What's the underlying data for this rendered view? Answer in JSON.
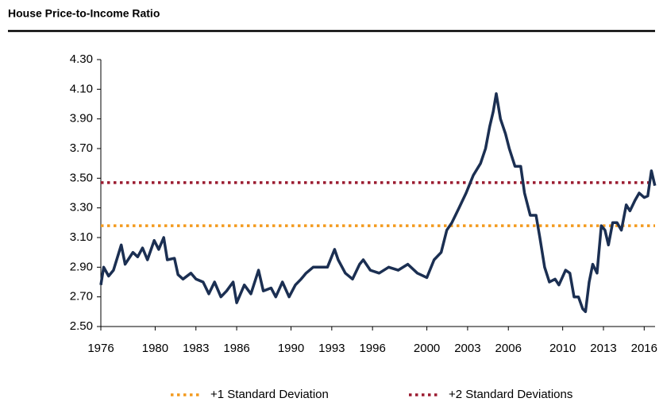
{
  "chart_data": {
    "type": "line",
    "title": "House Price-to-Income Ratio",
    "x": [
      1976.0,
      1976.21,
      1976.57,
      1976.93,
      1977.5,
      1977.79,
      1978.36,
      1978.71,
      1979.07,
      1979.43,
      1979.93,
      1980.26,
      1980.63,
      1980.89,
      1981.42,
      1981.68,
      1982.05,
      1982.63,
      1983.0,
      1983.53,
      1983.95,
      1984.37,
      1984.84,
      1985.26,
      1985.74,
      1986.0,
      1986.56,
      1987.05,
      1987.61,
      1987.96,
      1988.53,
      1988.88,
      1989.37,
      1989.86,
      1990.32,
      1990.74,
      1991.11,
      1991.63,
      1992.16,
      1992.68,
      1993.21,
      1993.47,
      1994.0,
      1994.53,
      1995.05,
      1995.32,
      1995.84,
      1996.49,
      1997.19,
      1997.89,
      1998.6,
      1999.3,
      2000.0,
      2000.53,
      2001.05,
      2001.47,
      2001.84,
      2002.37,
      2002.89,
      2003.42,
      2003.95,
      2004.32,
      2004.63,
      2004.89,
      2005.11,
      2005.42,
      2005.79,
      2006.07,
      2006.49,
      2006.91,
      2007.19,
      2007.61,
      2008.04,
      2008.32,
      2008.67,
      2009.02,
      2009.44,
      2009.72,
      2010.21,
      2010.53,
      2010.84,
      2011.16,
      2011.47,
      2011.68,
      2011.95,
      2012.21,
      2012.53,
      2012.84,
      2013.11,
      2013.37,
      2013.68,
      2014.0,
      2014.32,
      2014.68,
      2014.95,
      2015.32,
      2015.63,
      2016.0,
      2016.26,
      2016.53,
      2016.79
    ],
    "values": [
      2.78,
      2.9,
      2.84,
      2.88,
      3.05,
      2.92,
      3.0,
      2.97,
      3.03,
      2.95,
      3.08,
      3.02,
      3.1,
      2.95,
      2.96,
      2.85,
      2.82,
      2.86,
      2.82,
      2.8,
      2.72,
      2.8,
      2.7,
      2.74,
      2.8,
      2.66,
      2.78,
      2.72,
      2.88,
      2.74,
      2.76,
      2.7,
      2.8,
      2.7,
      2.78,
      2.82,
      2.86,
      2.9,
      2.9,
      2.9,
      3.02,
      2.95,
      2.86,
      2.82,
      2.92,
      2.95,
      2.88,
      2.86,
      2.9,
      2.88,
      2.92,
      2.86,
      2.83,
      2.95,
      3.0,
      3.15,
      3.2,
      3.3,
      3.4,
      3.52,
      3.6,
      3.7,
      3.85,
      3.95,
      4.07,
      3.9,
      3.8,
      3.7,
      3.58,
      3.58,
      3.4,
      3.25,
      3.25,
      3.1,
      2.9,
      2.8,
      2.82,
      2.78,
      2.88,
      2.86,
      2.7,
      2.7,
      2.62,
      2.6,
      2.8,
      2.92,
      2.86,
      3.18,
      3.15,
      3.05,
      3.2,
      3.2,
      3.15,
      3.32,
      3.28,
      3.35,
      3.4,
      3.37,
      3.38,
      3.55,
      3.45
    ],
    "color": "#1b2f52",
    "xlim": [
      1976,
      2016.8
    ],
    "xticks": [
      1976,
      1980,
      1983,
      1986,
      1990,
      1993,
      1996,
      2000,
      2003,
      2006,
      2010,
      2013,
      2016
    ],
    "ylim": [
      2.5,
      4.3
    ],
    "yticks": [
      {
        "value": 2.5,
        "label": "2.50"
      },
      {
        "value": 2.7,
        "label": "2.70"
      },
      {
        "value": 2.9,
        "label": "2.90"
      },
      {
        "value": 3.1,
        "label": "3.10"
      },
      {
        "value": 3.3,
        "label": "3.30"
      },
      {
        "value": 3.5,
        "label": "3.50"
      },
      {
        "value": 3.7,
        "label": "3.70"
      },
      {
        "value": 3.9,
        "label": "3.90"
      },
      {
        "value": 4.1,
        "label": "4.10"
      },
      {
        "value": 4.3,
        "label": "4.30"
      }
    ],
    "reference_lines": [
      {
        "name": "+1 Standard Deviation",
        "value": 3.18,
        "color": "#f39a1e"
      },
      {
        "name": "+2 Standard Deviations",
        "value": 3.47,
        "color": "#9b1b30"
      }
    ]
  }
}
